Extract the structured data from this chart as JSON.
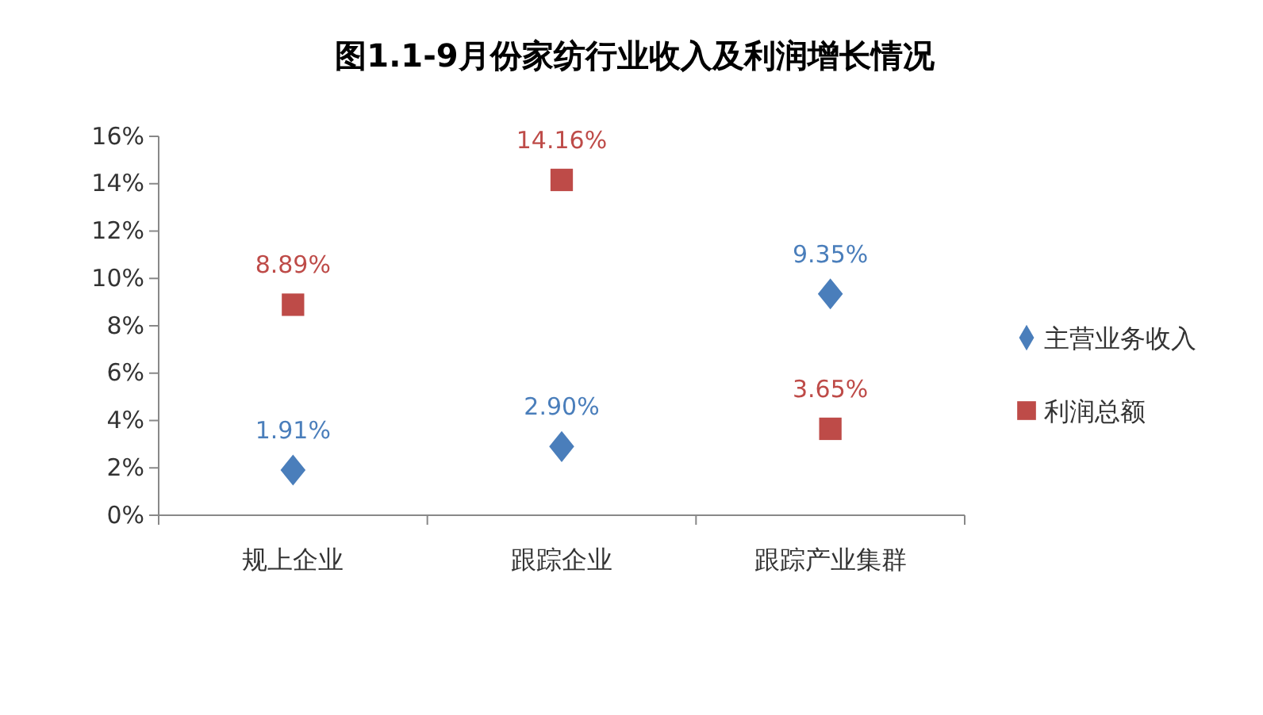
{
  "chart_data": {
    "type": "scatter",
    "title": "图1.1-9月份家纺行业收入及利润增长情况",
    "categories": [
      "规上企业",
      "跟踪企业",
      "跟踪产业集群"
    ],
    "series": [
      {
        "name": "主营业务收入",
        "color": "#4a7ebb",
        "marker": "diamond",
        "values": [
          1.91,
          2.9,
          9.35
        ],
        "value_labels": [
          "1.91%",
          "2.90%",
          "9.35%"
        ]
      },
      {
        "name": "利润总额",
        "color": "#be4b48",
        "marker": "square",
        "values": [
          8.89,
          14.16,
          3.65
        ],
        "value_labels": [
          "8.89%",
          "14.16%",
          "3.65%"
        ]
      }
    ],
    "ylim": [
      0,
      16
    ],
    "yticks": [
      {
        "value": 0,
        "label": "0%"
      },
      {
        "value": 2,
        "label": "2%"
      },
      {
        "value": 4,
        "label": "4%"
      },
      {
        "value": 6,
        "label": "6%"
      },
      {
        "value": 8,
        "label": "8%"
      },
      {
        "value": 10,
        "label": "10%"
      },
      {
        "value": 12,
        "label": "12%"
      },
      {
        "value": 14,
        "label": "14%"
      },
      {
        "value": 16,
        "label": "16%"
      }
    ],
    "grid": false,
    "legend": "right"
  }
}
